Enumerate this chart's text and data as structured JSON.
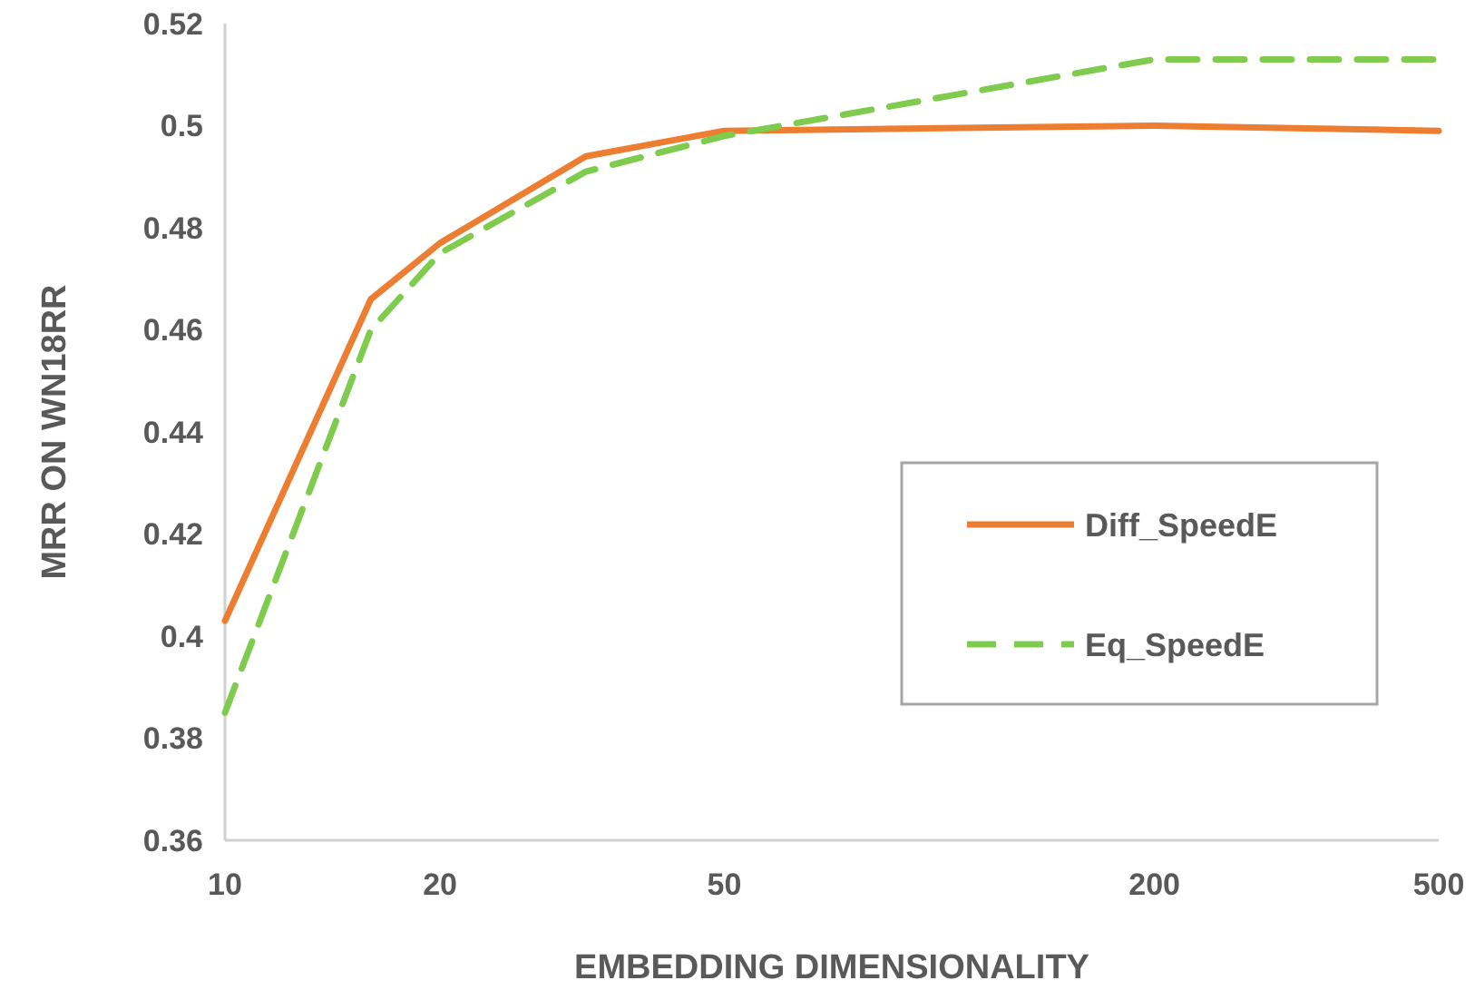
{
  "chart_data": {
    "type": "line",
    "xlabel": "EMBEDDING DIMENSIONALITY",
    "ylabel": "MRR ON WN18RR",
    "log": "x",
    "x": [
      10,
      16,
      20,
      32,
      50,
      200,
      500
    ],
    "xlim": [
      10,
      500
    ],
    "xticks": [
      10,
      20,
      50,
      200,
      500
    ],
    "ylim": [
      0.36,
      0.52
    ],
    "yticks": [
      0.36,
      0.38,
      0.4,
      0.42,
      0.44,
      0.46,
      0.48,
      0.5,
      0.52
    ],
    "grid": false,
    "legend": "right",
    "marker": "none",
    "series": [
      {
        "name": "Diff_SpeedE",
        "color": "#ed7d31",
        "line_style": "solid",
        "values": [
          0.403,
          0.466,
          0.477,
          0.494,
          0.499,
          0.5,
          0.499
        ]
      },
      {
        "name": "Eq_SpeedE",
        "color": "#7fcb4e",
        "line_style": "dashed",
        "values": [
          0.385,
          0.46,
          0.475,
          0.491,
          0.498,
          0.513,
          0.513
        ]
      }
    ]
  }
}
